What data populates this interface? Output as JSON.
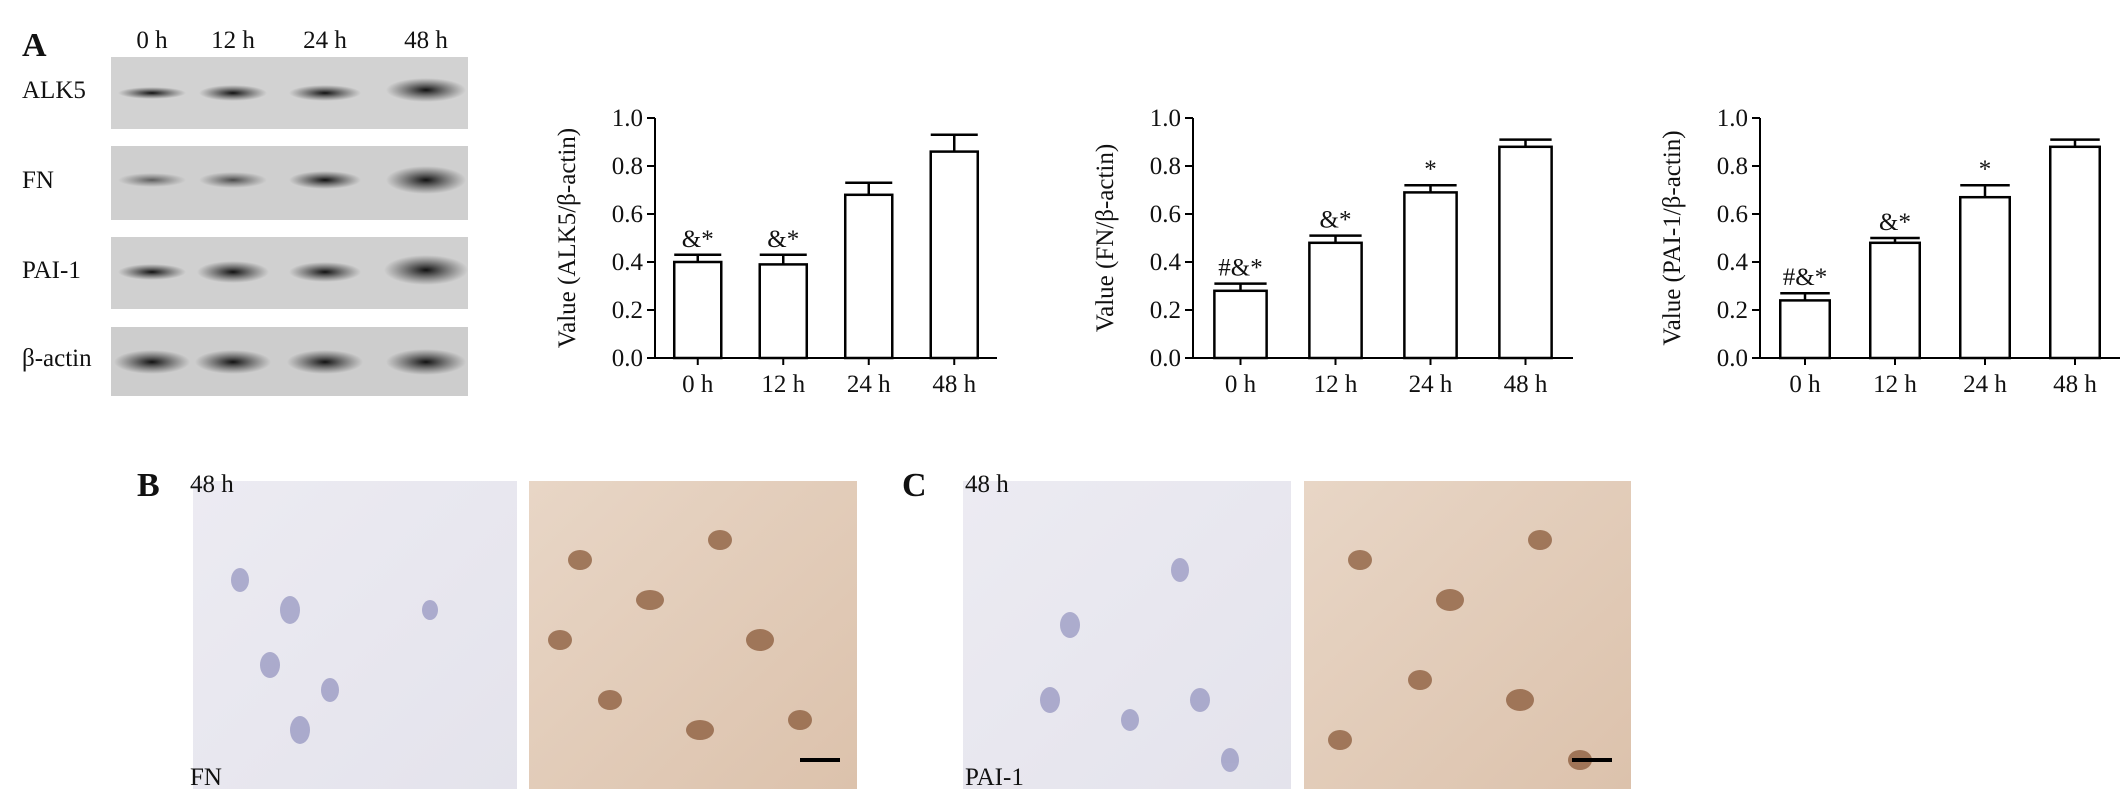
{
  "panel_labels": [
    "A",
    "B",
    "C"
  ],
  "blot": {
    "lanes": [
      "0 h",
      "12 h",
      "24 h",
      "48 h"
    ],
    "rows": [
      "ALK5",
      "FN",
      "PAI-1",
      "β-actin"
    ]
  },
  "micrographs": [
    {
      "time": "48 h",
      "stain": "FN"
    },
    {
      "time": "48 h",
      "stain": "PAI-1"
    }
  ],
  "chart_data": [
    {
      "type": "bar",
      "y_label": "Value (ALK5/β-actin)",
      "categories": [
        "0 h",
        "12 h",
        "24 h",
        "48 h"
      ],
      "values": [
        0.4,
        0.39,
        0.68,
        0.86
      ],
      "errors": [
        0.03,
        0.04,
        0.05,
        0.07
      ],
      "annotations": [
        "&*",
        "&*",
        null,
        null
      ],
      "color": "#ffffff",
      "ylim": [
        0,
        1
      ],
      "yticks": [
        {
          "value": 0,
          "label": "0.0"
        },
        0.2,
        0.4,
        0.6,
        0.8,
        {
          "value": 1,
          "label": "1.0"
        }
      ]
    },
    {
      "type": "bar",
      "y_label": "Value (FN/β-actin)",
      "categories": [
        "0 h",
        "12 h",
        "24 h",
        "48 h"
      ],
      "values": [
        0.28,
        0.48,
        0.69,
        0.88
      ],
      "errors": [
        0.03,
        0.03,
        0.03,
        0.03
      ],
      "annotations": [
        "#&*",
        "&*",
        "*",
        null
      ],
      "color": "#ffffff",
      "ylim": [
        0,
        1
      ],
      "yticks": [
        {
          "value": 0,
          "label": "0.0"
        },
        0.2,
        0.4,
        0.6,
        0.8,
        {
          "value": 1,
          "label": "1.0"
        }
      ]
    },
    {
      "type": "bar",
      "y_label": "Value (PAI-1/β-actin)",
      "categories": [
        "0 h",
        "12 h",
        "24 h",
        "48 h"
      ],
      "values": [
        0.24,
        0.48,
        0.67,
        0.88
      ],
      "errors": [
        0.03,
        0.02,
        0.05,
        0.03
      ],
      "annotations": [
        "#&*",
        "&*",
        "*",
        null
      ],
      "color": "#ffffff",
      "ylim": [
        0,
        1
      ],
      "yticks": [
        {
          "value": 0,
          "label": "0.0"
        },
        0.2,
        0.4,
        0.6,
        0.8,
        {
          "value": 1,
          "label": "1.0"
        }
      ]
    }
  ]
}
